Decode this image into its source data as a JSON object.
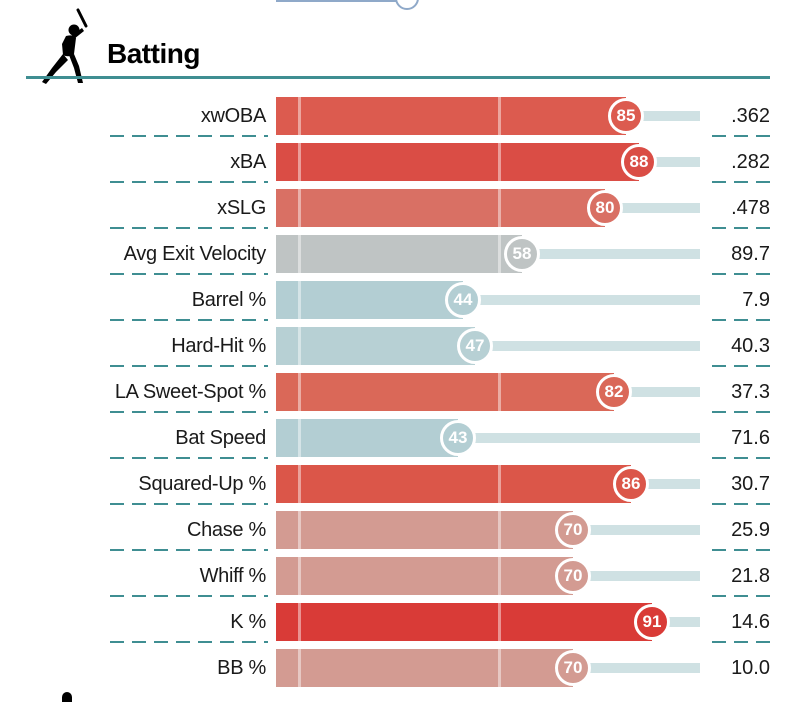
{
  "section": {
    "title": "Batting"
  },
  "colors": {
    "accent": "#3f8e92",
    "track": "#cfe1e3"
  },
  "icons": {
    "header": "batter-silhouette-icon"
  },
  "metrics": [
    {
      "label": "xwOBA",
      "percentile": "85",
      "value": ".362",
      "color": "#dc5b4f"
    },
    {
      "label": "xBA",
      "percentile": "88",
      "value": ".282",
      "color": "#da4d45"
    },
    {
      "label": "xSLG",
      "percentile": "80",
      "value": ".478",
      "color": "#d97064"
    },
    {
      "label": "Avg Exit Velocity",
      "percentile": "58",
      "value": "89.7",
      "color": "#bfc4c4"
    },
    {
      "label": "Barrel %",
      "percentile": "44",
      "value": "7.9",
      "color": "#b3ced3"
    },
    {
      "label": "Hard-Hit %",
      "percentile": "47",
      "value": "40.3",
      "color": "#b7d0d4"
    },
    {
      "label": "LA Sweet-Spot %",
      "percentile": "82",
      "value": "37.3",
      "color": "#da6858"
    },
    {
      "label": "Bat Speed",
      "percentile": "43",
      "value": "71.6",
      "color": "#b3ced3"
    },
    {
      "label": "Squared-Up %",
      "percentile": "86",
      "value": "30.7",
      "color": "#db5649"
    },
    {
      "label": "Chase %",
      "percentile": "70",
      "value": "25.9",
      "color": "#d39b92"
    },
    {
      "label": "Whiff %",
      "percentile": "70",
      "value": "21.8",
      "color": "#d39b92"
    },
    {
      "label": "K %",
      "percentile": "91",
      "value": "14.6",
      "color": "#d93b37"
    },
    {
      "label": "BB %",
      "percentile": "70",
      "value": "10.0",
      "color": "#d39b92"
    }
  ]
}
